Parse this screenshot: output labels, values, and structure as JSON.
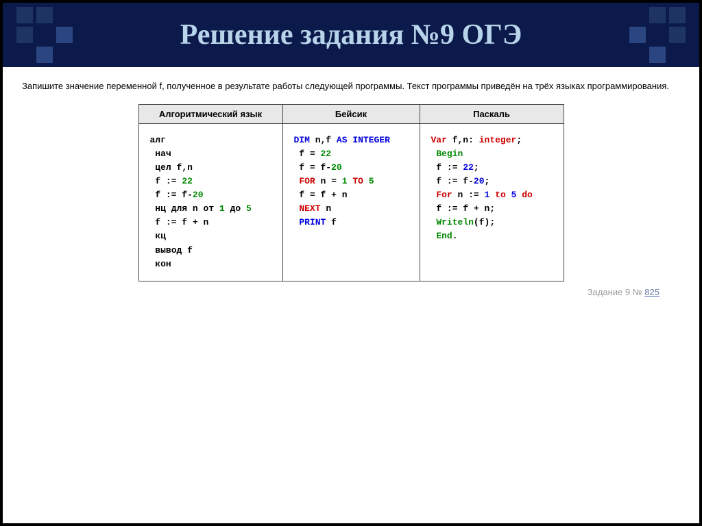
{
  "title": "Решение задания №9 ОГЭ",
  "task_text": "Запишите значение переменной f, полученное в результате работы следующей программы. Текст программы приведён на трёх языках программирования.",
  "table": {
    "headers": [
      "Алгоритмический язык",
      "Бейсик",
      "Паскаль"
    ],
    "col_widths": [
      "210px",
      "200px",
      "210px"
    ]
  },
  "code": {
    "alg": [
      {
        "t": "алг",
        "c": "kw-black"
      },
      {
        "t": " нач",
        "c": "kw-black"
      },
      {
        "t": " цел ",
        "c": "kw-black",
        "after": [
          {
            "t": "f,n",
            "c": "kw-black"
          }
        ]
      },
      {
        "t": " f := ",
        "c": "kw-black",
        "after": [
          {
            "t": "22",
            "c": "kw-green"
          }
        ]
      },
      {
        "t": " f := f-",
        "c": "kw-black",
        "after": [
          {
            "t": "20",
            "c": "kw-green"
          }
        ]
      },
      {
        "t": " нц для ",
        "c": "kw-black",
        "after": [
          {
            "t": "n",
            "c": "kw-black"
          },
          {
            "t": " от ",
            "c": "kw-black"
          },
          {
            "t": "1",
            "c": "kw-green"
          },
          {
            "t": " до ",
            "c": "kw-black"
          },
          {
            "t": "5",
            "c": "kw-green"
          }
        ]
      },
      {
        "t": " f := f + n",
        "c": "kw-black"
      },
      {
        "t": " кц",
        "c": "kw-black"
      },
      {
        "t": " вывод ",
        "c": "kw-black",
        "after": [
          {
            "t": "f",
            "c": "kw-black"
          }
        ]
      },
      {
        "t": " кон",
        "c": "kw-black"
      }
    ],
    "basic": [
      [
        {
          "t": "DIM",
          "c": "kw-blue"
        },
        {
          "t": " n,f ",
          "c": "kw-black"
        },
        {
          "t": "AS INTEGER",
          "c": "kw-blue"
        }
      ],
      [
        {
          "t": " f = ",
          "c": "kw-black"
        },
        {
          "t": "22",
          "c": "kw-green"
        }
      ],
      [
        {
          "t": " f = f-",
          "c": "kw-black"
        },
        {
          "t": "20",
          "c": "kw-green"
        }
      ],
      [
        {
          "t": " ",
          "c": "kw-black"
        },
        {
          "t": "FOR",
          "c": "kw-red"
        },
        {
          "t": " n = ",
          "c": "kw-black"
        },
        {
          "t": "1",
          "c": "kw-green"
        },
        {
          "t": " ",
          "c": "kw-black"
        },
        {
          "t": "TO",
          "c": "kw-red"
        },
        {
          "t": " ",
          "c": "kw-black"
        },
        {
          "t": "5",
          "c": "kw-green"
        }
      ],
      [
        {
          "t": " f = f + n",
          "c": "kw-black"
        }
      ],
      [
        {
          "t": " ",
          "c": "kw-black"
        },
        {
          "t": "NEXT",
          "c": "kw-red"
        },
        {
          "t": " n",
          "c": "kw-black"
        }
      ],
      [
        {
          "t": " ",
          "c": "kw-black"
        },
        {
          "t": "PRINT",
          "c": "kw-blue"
        },
        {
          "t": " f",
          "c": "kw-black"
        }
      ]
    ],
    "pascal": [
      [
        {
          "t": "Var",
          "c": "kw-red"
        },
        {
          "t": " f,n: ",
          "c": "kw-black"
        },
        {
          "t": "integer",
          "c": "kw-red"
        },
        {
          "t": ";",
          "c": "kw-black"
        }
      ],
      [
        {
          "t": " ",
          "c": "kw-black"
        },
        {
          "t": "Begin",
          "c": "kw-green"
        }
      ],
      [
        {
          "t": " f := ",
          "c": "kw-black"
        },
        {
          "t": "22",
          "c": "kw-blue"
        },
        {
          "t": ";",
          "c": "kw-black"
        }
      ],
      [
        {
          "t": " f := f-",
          "c": "kw-black"
        },
        {
          "t": "20",
          "c": "kw-blue"
        },
        {
          "t": ";",
          "c": "kw-black"
        }
      ],
      [
        {
          "t": " ",
          "c": "kw-black"
        },
        {
          "t": "For",
          "c": "kw-red"
        },
        {
          "t": " n := ",
          "c": "kw-black"
        },
        {
          "t": "1",
          "c": "kw-blue"
        },
        {
          "t": " ",
          "c": "kw-black"
        },
        {
          "t": "to",
          "c": "kw-red"
        },
        {
          "t": " ",
          "c": "kw-black"
        },
        {
          "t": "5",
          "c": "kw-blue"
        },
        {
          "t": " ",
          "c": "kw-black"
        },
        {
          "t": "do",
          "c": "kw-red"
        }
      ],
      [
        {
          "t": " f := f + n;",
          "c": "kw-black"
        }
      ],
      [
        {
          "t": " ",
          "c": "kw-black"
        },
        {
          "t": "Writeln",
          "c": "kw-green"
        },
        {
          "t": "(f);",
          "c": "kw-black"
        }
      ],
      [
        {
          "t": " ",
          "c": "kw-black"
        },
        {
          "t": "End",
          "c": "kw-green"
        },
        {
          "t": ".",
          "c": "kw-black"
        }
      ]
    ]
  },
  "task_ref": {
    "label": "Задание 9 № ",
    "num": "825"
  },
  "colors": {
    "header_bg": "#0b1a4a",
    "title_color": "#b8d4ea",
    "sq_dark": "#1e3564",
    "sq_med": "#2a4580",
    "th_bg": "#e8e8e8"
  },
  "squares": {
    "left": [
      "sq-dark",
      "sq-dark",
      "sq-none",
      "sq-dark",
      "sq-none",
      "sq-med",
      "sq-none",
      "sq-med",
      "sq-none"
    ],
    "right": [
      "sq-none",
      "sq-dark",
      "sq-dark",
      "sq-med",
      "sq-none",
      "sq-dark",
      "sq-none",
      "sq-med",
      "sq-none"
    ]
  }
}
